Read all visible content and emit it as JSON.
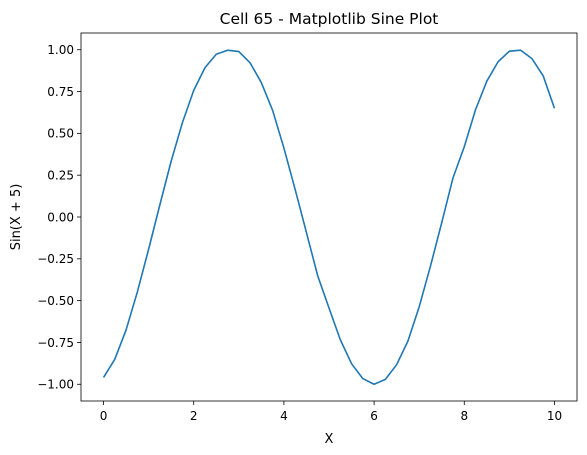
{
  "chart_data": {
    "type": "line",
    "title": "Cell 65 - Matplotlib Sine Plot",
    "xlabel": "X",
    "ylabel": "Sin(X + 5)",
    "xlim": [
      -0.5,
      10.5
    ],
    "ylim": [
      -1.1,
      1.1
    ],
    "xticks": [
      0,
      2,
      4,
      6,
      8,
      10
    ],
    "xtick_labels": [
      "0",
      "2",
      "4",
      "6",
      "8",
      "10"
    ],
    "yticks": [
      -1.0,
      -0.75,
      -0.5,
      -0.25,
      0.0,
      0.25,
      0.5,
      0.75,
      1.0
    ],
    "ytick_labels": [
      "−1.00",
      "−0.75",
      "−0.50",
      "−0.25",
      "0.00",
      "0.25",
      "0.50",
      "0.75",
      "1.00"
    ],
    "grid": false,
    "series": [
      {
        "color": "#1f77b4",
        "x": [
          0,
          0.25,
          0.5,
          0.75,
          1,
          1.25,
          1.5,
          1.75,
          2,
          2.25,
          2.5,
          2.75,
          3,
          3.25,
          3.5,
          3.75,
          4,
          4.25,
          4.5,
          4.75,
          5,
          5.25,
          5.5,
          5.75,
          6,
          6.25,
          6.5,
          6.75,
          7,
          7.25,
          7.5,
          7.75,
          8,
          8.25,
          8.5,
          8.75,
          9,
          9.25,
          9.5,
          9.75,
          10
        ],
        "y": [
          -0.959,
          -0.85,
          -0.675,
          -0.448,
          -0.192,
          0.074,
          0.334,
          0.565,
          0.757,
          0.893,
          0.973,
          0.997,
          0.989,
          0.922,
          0.803,
          0.637,
          0.412,
          0.164,
          -0.093,
          -0.352,
          -0.544,
          -0.733,
          -0.877,
          -0.966,
          -1.0,
          -0.971,
          -0.883,
          -0.742,
          -0.537,
          -0.294,
          -0.034,
          0.234,
          0.42,
          0.642,
          0.812,
          0.928,
          0.991,
          0.997,
          0.947,
          0.844,
          0.65
        ]
      }
    ]
  }
}
